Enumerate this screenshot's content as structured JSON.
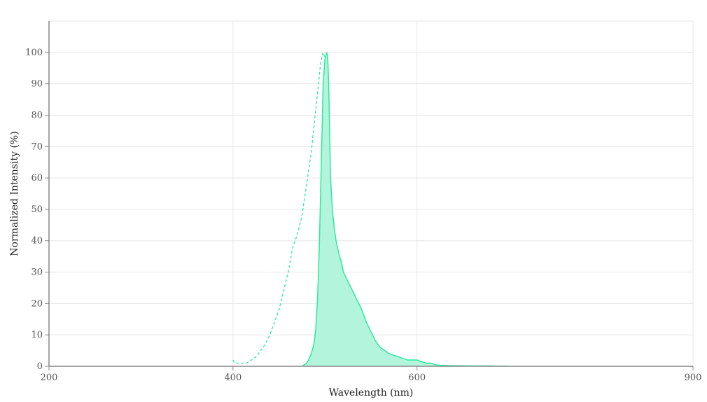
{
  "chart_data": {
    "type": "area",
    "title": "",
    "xlabel": "Wavelength (nm)",
    "ylabel": "Normalized Intensity (%)",
    "xlim": [
      200,
      900
    ],
    "ylim": [
      0,
      110
    ],
    "x_ticks": [
      200,
      400,
      600,
      900
    ],
    "y_ticks": [
      0,
      10,
      20,
      30,
      40,
      50,
      60,
      70,
      80,
      90,
      100
    ],
    "grid": true,
    "legend": "none",
    "colors": {
      "fill": "#b3f5dc",
      "line": "#2ee8a0"
    },
    "series": [
      {
        "style": "dashed",
        "x": [
          400,
          402,
          405,
          410,
          415,
          420,
          425,
          430,
          435,
          440,
          445,
          450,
          455,
          460,
          465,
          470,
          475,
          480,
          485,
          490,
          493,
          495,
          497,
          498,
          500,
          501,
          502,
          503,
          504,
          505,
          507,
          510,
          512,
          515,
          520,
          525,
          528,
          530
        ],
        "values": [
          2,
          1,
          1,
          1,
          1,
          2,
          3,
          5,
          7,
          10,
          14,
          18,
          24,
          30,
          38,
          42,
          48,
          58,
          68,
          82,
          90,
          96,
          99,
          100,
          98,
          92,
          80,
          65,
          50,
          38,
          24,
          12,
          7,
          4,
          2,
          1,
          0.5,
          0
        ]
      },
      {
        "style": "solid-filled",
        "x": [
          475,
          480,
          482,
          485,
          488,
          490,
          492,
          494,
          496,
          498,
          500,
          502,
          503,
          504,
          505,
          506,
          508,
          510,
          512,
          515,
          518,
          520,
          525,
          530,
          535,
          540,
          545,
          550,
          555,
          560,
          565,
          570,
          580,
          590,
          600,
          610,
          615,
          620,
          625,
          640,
          660,
          680,
          700
        ],
        "values": [
          0,
          1,
          2,
          4,
          7,
          12,
          22,
          40,
          65,
          90,
          98,
          100,
          98,
          90,
          75,
          60,
          50,
          44,
          40,
          36,
          33,
          30,
          27,
          24,
          21,
          18,
          14,
          11,
          8,
          6,
          5,
          4,
          3,
          2,
          2,
          1,
          1,
          0.5,
          0.3,
          0.2,
          0.1,
          0.1,
          0
        ]
      }
    ]
  }
}
